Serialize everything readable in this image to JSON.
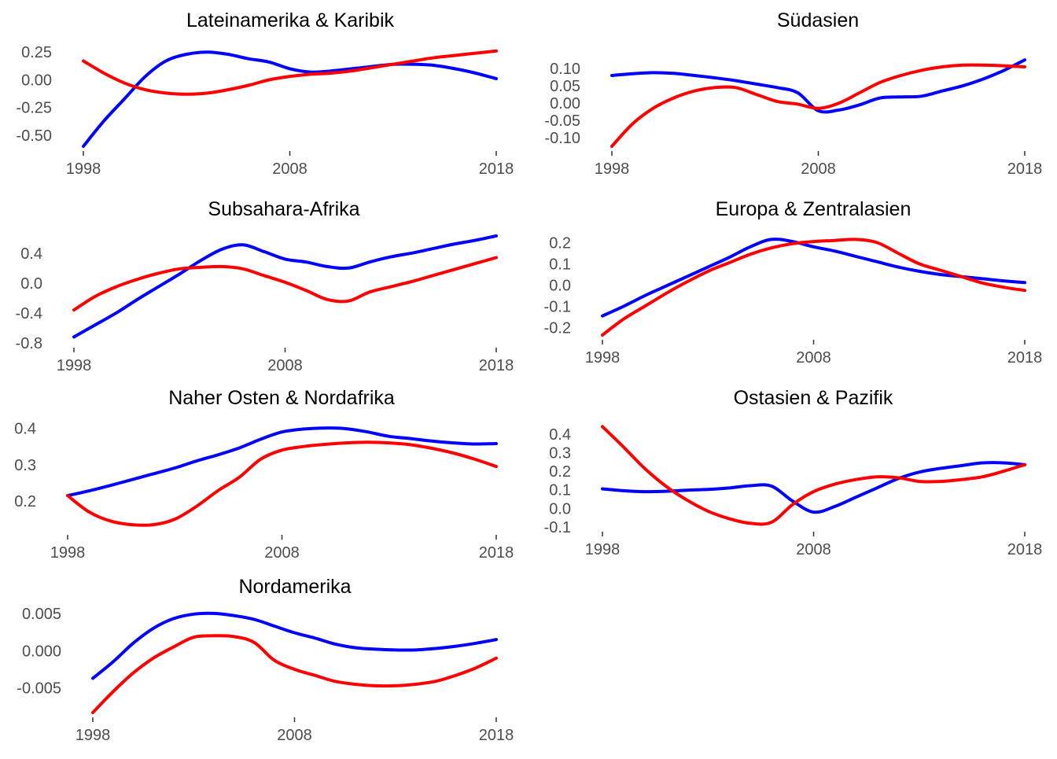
{
  "colors": {
    "series_a": "#0000ff",
    "series_b": "#ff0000",
    "text": "#000000",
    "tick_text": "#4d4d4d"
  },
  "chart_data": [
    {
      "type": "line",
      "title": "Lateinamerika & Karibik",
      "xlabel": "",
      "ylabel": "",
      "xlim": [
        1998,
        2018
      ],
      "ylim": [
        -0.6,
        0.28
      ],
      "x_ticks": [
        1998,
        2008,
        2018
      ],
      "y_ticks": [
        -0.5,
        -0.25,
        0.0,
        0.25
      ],
      "y_tick_labels": [
        "-0.50",
        "-0.25",
        "0.00",
        "0.25"
      ],
      "grid": false,
      "series": [
        {
          "color": "#0000ff",
          "x": [
            1998,
            1999,
            2000,
            2001,
            2002,
            2003,
            2004,
            2005,
            2006,
            2007,
            2008,
            2009,
            2010,
            2011,
            2012,
            2013,
            2014,
            2015,
            2016,
            2017,
            2018
          ],
          "y": [
            -0.6,
            -0.37,
            -0.17,
            0.03,
            0.17,
            0.23,
            0.25,
            0.23,
            0.19,
            0.16,
            0.1,
            0.07,
            0.08,
            0.1,
            0.12,
            0.14,
            0.14,
            0.13,
            0.1,
            0.06,
            0.01
          ]
        },
        {
          "color": "#ff0000",
          "x": [
            1998,
            1999,
            2000,
            2001,
            2002,
            2003,
            2004,
            2005,
            2006,
            2007,
            2008,
            2009,
            2010,
            2011,
            2012,
            2013,
            2014,
            2015,
            2016,
            2017,
            2018
          ],
          "y": [
            0.17,
            0.06,
            -0.03,
            -0.09,
            -0.12,
            -0.13,
            -0.12,
            -0.09,
            -0.05,
            0.0,
            0.03,
            0.05,
            0.06,
            0.08,
            0.11,
            0.14,
            0.17,
            0.2,
            0.22,
            0.24,
            0.26
          ]
        }
      ]
    },
    {
      "type": "line",
      "title": "Südasien",
      "xlabel": "",
      "ylabel": "",
      "xlim": [
        1998,
        2018
      ],
      "ylim": [
        -0.125,
        0.13
      ],
      "x_ticks": [
        1998,
        2008,
        2018
      ],
      "y_ticks": [
        -0.1,
        -0.05,
        0.0,
        0.05,
        0.1
      ],
      "y_tick_labels": [
        "-0.10",
        "-0.05",
        "0.00",
        "0.05",
        "0.10"
      ],
      "grid": false,
      "series": [
        {
          "color": "#0000ff",
          "x": [
            1998,
            1999,
            2000,
            2001,
            2002,
            2003,
            2004,
            2005,
            2006,
            2007,
            2008,
            2009,
            2010,
            2011,
            2012,
            2013,
            2014,
            2015,
            2016,
            2017,
            2018
          ],
          "y": [
            0.08,
            0.085,
            0.088,
            0.086,
            0.08,
            0.073,
            0.065,
            0.055,
            0.045,
            0.03,
            -0.022,
            -0.02,
            -0.005,
            0.015,
            0.018,
            0.02,
            0.035,
            0.05,
            0.07,
            0.095,
            0.125
          ]
        },
        {
          "color": "#ff0000",
          "x": [
            1998,
            1999,
            2000,
            2001,
            2002,
            2003,
            2004,
            2005,
            2006,
            2007,
            2008,
            2009,
            2010,
            2011,
            2012,
            2013,
            2014,
            2015,
            2016,
            2017,
            2018
          ],
          "y": [
            -0.125,
            -0.06,
            -0.015,
            0.015,
            0.035,
            0.045,
            0.045,
            0.025,
            0.005,
            -0.003,
            -0.015,
            0.0,
            0.03,
            0.06,
            0.08,
            0.095,
            0.105,
            0.11,
            0.11,
            0.108,
            0.105
          ]
        }
      ]
    },
    {
      "type": "line",
      "title": "Subsahara-Afrika",
      "xlabel": "",
      "ylabel": "",
      "xlim": [
        1998,
        2018
      ],
      "ylim": [
        -0.8,
        0.65
      ],
      "x_ticks": [
        1998,
        2008,
        2018
      ],
      "y_ticks": [
        -0.8,
        -0.4,
        0.0,
        0.4
      ],
      "y_tick_labels": [
        "-0.8",
        "-0.4",
        "0.0",
        "0.4"
      ],
      "grid": false,
      "series": [
        {
          "color": "#0000ff",
          "x": [
            1998,
            1999,
            2000,
            2001,
            2002,
            2003,
            2004,
            2005,
            2006,
            2007,
            2008,
            2009,
            2010,
            2011,
            2012,
            2013,
            2014,
            2015,
            2016,
            2017,
            2018
          ],
          "y": [
            -0.72,
            -0.56,
            -0.4,
            -0.22,
            -0.05,
            0.12,
            0.3,
            0.45,
            0.51,
            0.42,
            0.32,
            0.28,
            0.22,
            0.2,
            0.28,
            0.35,
            0.4,
            0.46,
            0.52,
            0.57,
            0.63
          ]
        },
        {
          "color": "#ff0000",
          "x": [
            1998,
            1999,
            2000,
            2001,
            2002,
            2003,
            2004,
            2005,
            2006,
            2007,
            2008,
            2009,
            2010,
            2011,
            2012,
            2013,
            2014,
            2015,
            2016,
            2017,
            2018
          ],
          "y": [
            -0.36,
            -0.18,
            -0.05,
            0.05,
            0.13,
            0.19,
            0.21,
            0.22,
            0.19,
            0.1,
            0.01,
            -0.1,
            -0.22,
            -0.24,
            -0.12,
            -0.05,
            0.02,
            0.1,
            0.18,
            0.26,
            0.34
          ]
        }
      ]
    },
    {
      "type": "line",
      "title": "Europa & Zentralasien",
      "xlabel": "",
      "ylabel": "",
      "xlim": [
        1998,
        2018
      ],
      "ylim": [
        -0.235,
        0.22
      ],
      "x_ticks": [
        1998,
        2008,
        2018
      ],
      "y_ticks": [
        -0.2,
        -0.1,
        0.0,
        0.1,
        0.2
      ],
      "y_tick_labels": [
        "-0.2",
        "-0.1",
        "0.0",
        "0.1",
        "0.2"
      ],
      "grid": false,
      "series": [
        {
          "color": "#0000ff",
          "x": [
            1998,
            1999,
            2000,
            2001,
            2002,
            2003,
            2004,
            2005,
            2006,
            2007,
            2008,
            2009,
            2010,
            2011,
            2012,
            2013,
            2014,
            2015,
            2016,
            2017,
            2018
          ],
          "y": [
            -0.145,
            -0.1,
            -0.05,
            -0.005,
            0.04,
            0.085,
            0.13,
            0.18,
            0.215,
            0.205,
            0.18,
            0.16,
            0.135,
            0.11,
            0.085,
            0.065,
            0.05,
            0.04,
            0.03,
            0.02,
            0.012
          ]
        },
        {
          "color": "#ff0000",
          "x": [
            1998,
            1999,
            2000,
            2001,
            2002,
            2003,
            2004,
            2005,
            2006,
            2007,
            2008,
            2009,
            2010,
            2011,
            2012,
            2013,
            2014,
            2015,
            2016,
            2017,
            2018
          ],
          "y": [
            -0.235,
            -0.16,
            -0.1,
            -0.04,
            0.015,
            0.065,
            0.105,
            0.145,
            0.175,
            0.195,
            0.205,
            0.21,
            0.215,
            0.2,
            0.15,
            0.1,
            0.07,
            0.04,
            0.01,
            -0.01,
            -0.025
          ]
        }
      ]
    },
    {
      "type": "line",
      "title": "Naher Osten & Nordafrika",
      "xlabel": "",
      "ylabel": "",
      "xlim": [
        1998,
        2018
      ],
      "ylim": [
        0.12,
        0.41
      ],
      "x_ticks": [
        1998,
        2008,
        2018
      ],
      "y_ticks": [
        0.2,
        0.3,
        0.4
      ],
      "y_tick_labels": [
        "0.2",
        "0.3",
        "0.4"
      ],
      "grid": false,
      "series": [
        {
          "color": "#0000ff",
          "x": [
            1998,
            1999,
            2000,
            2001,
            2002,
            2003,
            2004,
            2005,
            2006,
            2007,
            2008,
            2009,
            2010,
            2011,
            2012,
            2013,
            2014,
            2015,
            2016,
            2017,
            2018
          ],
          "y": [
            0.215,
            0.228,
            0.243,
            0.259,
            0.275,
            0.291,
            0.31,
            0.327,
            0.346,
            0.37,
            0.39,
            0.398,
            0.401,
            0.399,
            0.39,
            0.378,
            0.372,
            0.365,
            0.36,
            0.357,
            0.358
          ]
        },
        {
          "color": "#ff0000",
          "x": [
            1998,
            1999,
            2000,
            2001,
            2002,
            2003,
            2004,
            2005,
            2006,
            2007,
            2008,
            2009,
            2010,
            2011,
            2012,
            2013,
            2014,
            2015,
            2016,
            2017,
            2018
          ],
          "y": [
            0.215,
            0.17,
            0.145,
            0.135,
            0.135,
            0.15,
            0.185,
            0.228,
            0.265,
            0.315,
            0.34,
            0.35,
            0.356,
            0.36,
            0.362,
            0.36,
            0.355,
            0.345,
            0.332,
            0.315,
            0.295
          ]
        }
      ]
    },
    {
      "type": "line",
      "title": "Ostasien & Pazifik",
      "xlabel": "",
      "ylabel": "",
      "xlim": [
        1998,
        2018
      ],
      "ylim": [
        -0.1,
        0.45
      ],
      "x_ticks": [
        1998,
        2008,
        2018
      ],
      "y_ticks": [
        -0.1,
        0.0,
        0.1,
        0.2,
        0.3,
        0.4
      ],
      "y_tick_labels": [
        "-0.1",
        "0.0",
        "0.1",
        "0.2",
        "0.3",
        "0.4"
      ],
      "grid": false,
      "series": [
        {
          "color": "#0000ff",
          "x": [
            1998,
            1999,
            2000,
            2001,
            2002,
            2003,
            2004,
            2005,
            2006,
            2007,
            2008,
            2009,
            2010,
            2011,
            2012,
            2013,
            2014,
            2015,
            2016,
            2017,
            2018
          ],
          "y": [
            0.105,
            0.095,
            0.09,
            0.092,
            0.098,
            0.102,
            0.11,
            0.122,
            0.12,
            0.04,
            -0.02,
            0.01,
            0.06,
            0.11,
            0.16,
            0.195,
            0.215,
            0.23,
            0.245,
            0.245,
            0.235
          ]
        },
        {
          "color": "#ff0000",
          "x": [
            1998,
            1999,
            2000,
            2001,
            2002,
            2003,
            2004,
            2005,
            2006,
            2007,
            2008,
            2009,
            2010,
            2011,
            2012,
            2013,
            2014,
            2015,
            2016,
            2017,
            2018
          ],
          "y": [
            0.44,
            0.33,
            0.215,
            0.12,
            0.045,
            -0.015,
            -0.055,
            -0.08,
            -0.075,
            0.02,
            0.09,
            0.13,
            0.155,
            0.17,
            0.165,
            0.145,
            0.145,
            0.155,
            0.17,
            0.2,
            0.235
          ]
        }
      ]
    },
    {
      "type": "line",
      "title": "Nordamerika",
      "xlabel": "",
      "ylabel": "",
      "xlim": [
        1998,
        2018
      ],
      "ylim": [
        -0.0083,
        0.0052
      ],
      "x_ticks": [
        1998,
        2008,
        2018
      ],
      "y_ticks": [
        -0.005,
        0.0,
        0.005
      ],
      "y_tick_labels": [
        "-0.005",
        "0.000",
        "0.005"
      ],
      "grid": false,
      "series": [
        {
          "color": "#0000ff",
          "x": [
            1998,
            1999,
            2000,
            2001,
            2002,
            2003,
            2004,
            2005,
            2006,
            2007,
            2008,
            2009,
            2010,
            2011,
            2012,
            2013,
            2014,
            2015,
            2016,
            2017,
            2018
          ],
          "y": [
            -0.0037,
            -0.0015,
            0.001,
            0.003,
            0.0043,
            0.0049,
            0.005,
            0.0047,
            0.0042,
            0.0033,
            0.0024,
            0.0017,
            0.0009,
            0.0004,
            0.0002,
            0.0001,
            0.0001,
            0.0003,
            0.0006,
            0.001,
            0.0015
          ]
        },
        {
          "color": "#ff0000",
          "x": [
            1998,
            1999,
            2000,
            2001,
            2002,
            2003,
            2004,
            2005,
            2006,
            2007,
            2008,
            2009,
            2010,
            2011,
            2012,
            2013,
            2014,
            2015,
            2016,
            2017,
            2018
          ],
          "y": [
            -0.0083,
            -0.0055,
            -0.003,
            -0.001,
            0.0005,
            0.0018,
            0.002,
            0.0019,
            0.0011,
            -0.0013,
            -0.0025,
            -0.0033,
            -0.0041,
            -0.0045,
            -0.0047,
            -0.0047,
            -0.0045,
            -0.0041,
            -0.0033,
            -0.0023,
            -0.001
          ]
        }
      ]
    }
  ]
}
